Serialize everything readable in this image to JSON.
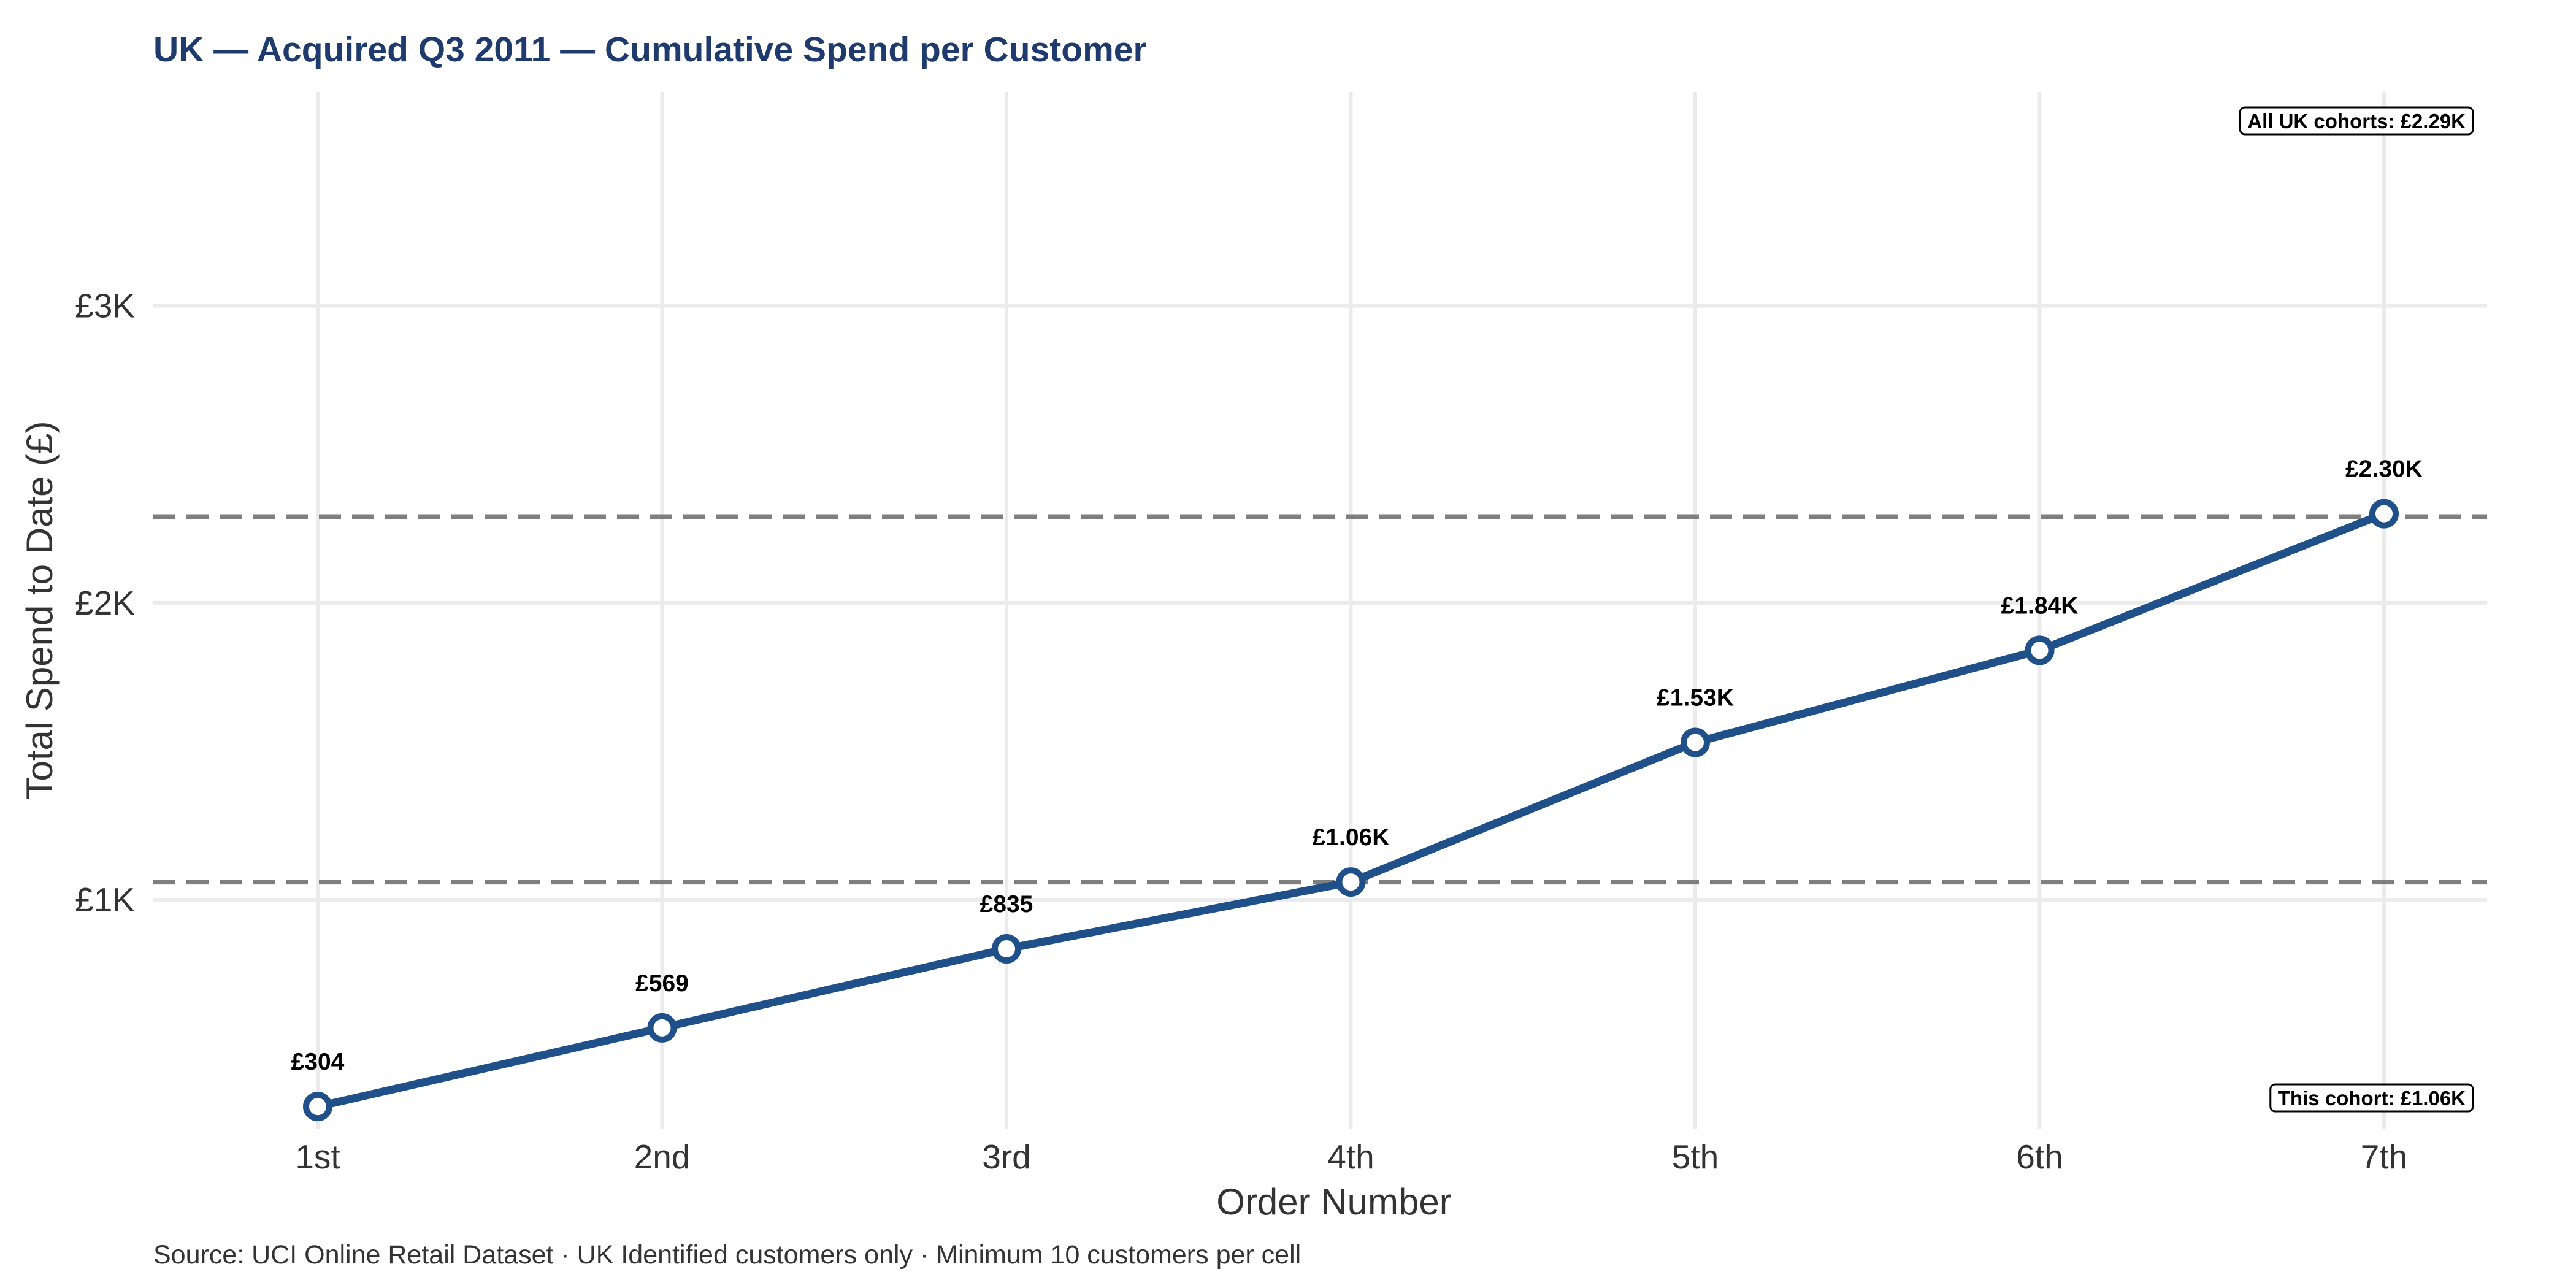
{
  "chart_data": {
    "type": "line",
    "title": "UK — Acquired Q3 2011 — Cumulative Spend per Customer",
    "caption": "Source: UCI Online Retail Dataset · UK Identified customers only · Minimum 10 customers per cell",
    "xlabel": "Order Number",
    "ylabel": "Total Spend to Date (£)",
    "categories": [
      "1st",
      "2nd",
      "3rd",
      "4th",
      "5th",
      "6th",
      "7th"
    ],
    "series": [
      {
        "values": [
          304,
          569,
          835,
          1060,
          1530,
          1840,
          2300
        ],
        "labels": [
          "£304",
          "£569",
          "£835",
          "£1.06K",
          "£1.53K",
          "£1.84K",
          "£2.30K"
        ],
        "color": "#1f5089"
      }
    ],
    "y_ticks": [
      1000,
      2000,
      3000
    ],
    "y_tick_labels": [
      "£1K",
      "£2K",
      "£3K"
    ],
    "ylim": [
      230,
      3720
    ],
    "grid": true,
    "reference_lines": [
      {
        "value": 2290,
        "label": "All UK cohorts: £2.29K",
        "color": "#7f7f7f",
        "style": "dashed",
        "label_position": "top-right"
      },
      {
        "value": 1060,
        "label": "This cohort: £1.06K",
        "color": "#7f7f7f",
        "style": "dashed",
        "label_position": "bottom-right"
      }
    ]
  },
  "colors": {
    "title": "#1f3b6e",
    "line": "#1f5089",
    "grid": "#ebebeb",
    "reference": "#7f7f7f",
    "text": "#333333"
  }
}
